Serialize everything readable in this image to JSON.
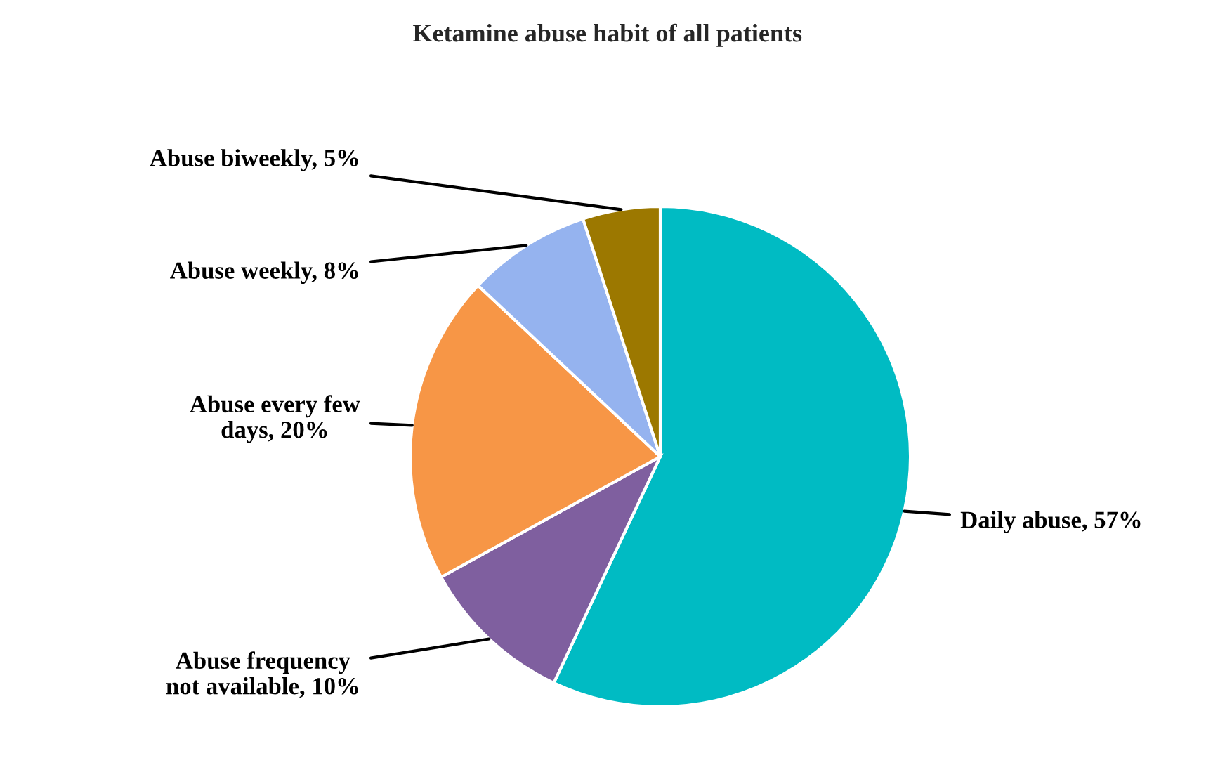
{
  "chart_data": {
    "type": "pie",
    "title": "Ketamine abuse habit of all patients",
    "categories": [
      "Daily abuse",
      "Abuse frequency not available",
      "Abuse every few days",
      "Abuse weekly",
      "Abuse biweekly"
    ],
    "values": [
      57,
      10,
      20,
      8,
      5
    ],
    "value_labels": [
      "57%",
      "10%",
      "20%",
      "8%",
      "5%"
    ],
    "colors": [
      "#00bbc3",
      "#7f5f9f",
      "#f79646",
      "#95b3ef",
      "#9c7800"
    ]
  }
}
